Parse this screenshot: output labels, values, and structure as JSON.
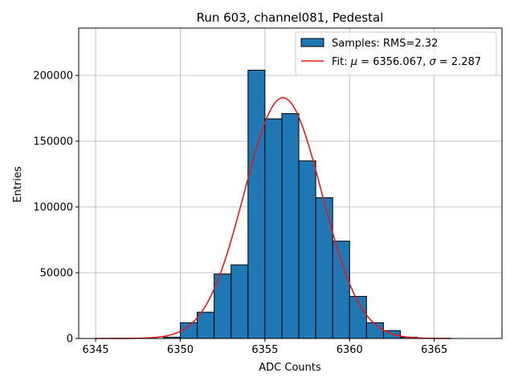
{
  "chart_data": {
    "type": "bar",
    "title": "Run 603, channel081, Pedestal",
    "xlabel": "ADC Counts",
    "ylabel": "Entries",
    "xlim": [
      6344,
      6369
    ],
    "ylim": [
      0,
      236000
    ],
    "xticks": [
      6345,
      6350,
      6355,
      6360,
      6365
    ],
    "yticks": [
      0,
      50000,
      100000,
      150000,
      200000
    ],
    "grid": true,
    "legend_position": "top-right",
    "histogram": {
      "name": "Samples: RMS=2.32",
      "color": "#1f77b4",
      "edgecolor": "#000000",
      "bin_width": 1,
      "bins": [
        {
          "x": 6349,
          "count": 1000
        },
        {
          "x": 6350,
          "count": 12000
        },
        {
          "x": 6351,
          "count": 20000
        },
        {
          "x": 6352,
          "count": 49000
        },
        {
          "x": 6353,
          "count": 56000
        },
        {
          "x": 6354,
          "count": 204000
        },
        {
          "x": 6355,
          "count": 167000
        },
        {
          "x": 6356,
          "count": 171000
        },
        {
          "x": 6357,
          "count": 135000
        },
        {
          "x": 6358,
          "count": 107000
        },
        {
          "x": 6359,
          "count": 74000
        },
        {
          "x": 6360,
          "count": 32000
        },
        {
          "x": 6361,
          "count": 12000
        },
        {
          "x": 6362,
          "count": 6000
        },
        {
          "x": 6363,
          "count": 1000
        }
      ]
    },
    "fit": {
      "name_prefix": "Fit: ",
      "mu_symbol": "μ",
      "mu_value": " = 6356.067, ",
      "sigma_symbol": "σ",
      "sigma_value": " = 2.287",
      "color": "#e31a1c",
      "mu": 6356.067,
      "sigma": 2.287,
      "amplitude": 183000,
      "x_range": [
        6345,
        6366
      ]
    }
  }
}
